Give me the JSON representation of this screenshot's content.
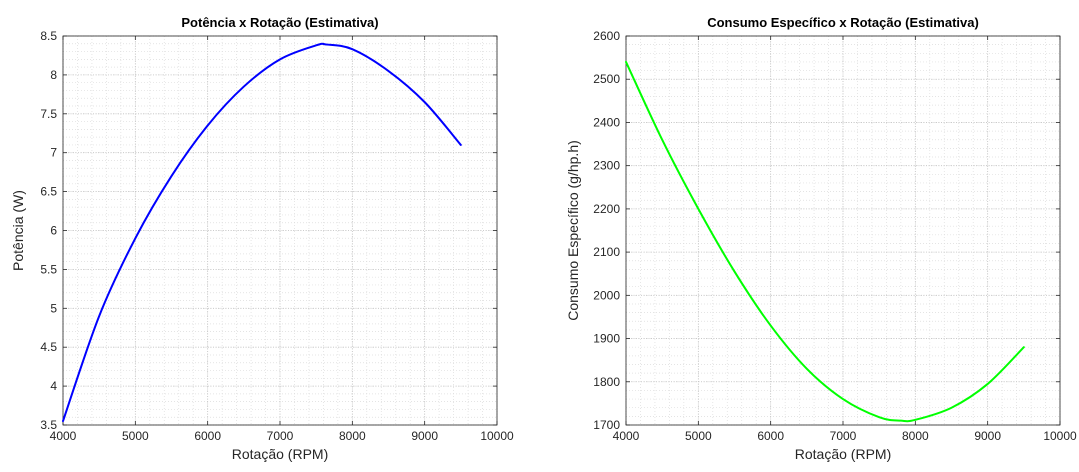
{
  "chart_data": [
    {
      "type": "line",
      "title": "Potência x Rotação (Estimativa)",
      "xlabel": "Rotação (RPM)",
      "ylabel": "Potência (W)",
      "xlim": [
        4000,
        10000
      ],
      "ylim": [
        3.5,
        8.5
      ],
      "xticks": [
        "4000",
        "5000",
        "6000",
        "7000",
        "8000",
        "9000",
        "10000"
      ],
      "yticks": [
        "3.5",
        "4",
        "4.5",
        "5",
        "5.5",
        "6",
        "6.5",
        "7",
        "7.5",
        "8",
        "8.5"
      ],
      "grid": true,
      "minor_grid": true,
      "series": [
        {
          "color": "#0000ff",
          "x": [
            4000,
            4500,
            5000,
            5500,
            6000,
            6500,
            7000,
            7500,
            7650,
            8000,
            8500,
            9000,
            9500
          ],
          "y": [
            3.55,
            4.9,
            5.9,
            6.7,
            7.35,
            7.85,
            8.2,
            8.38,
            8.39,
            8.33,
            8.05,
            7.65,
            7.1
          ]
        }
      ]
    },
    {
      "type": "line",
      "title": "Consumo Específico x Rotação (Estimativa)",
      "xlabel": "Rotação (RPM)",
      "ylabel": "Consumo Específico (g/hp.h)",
      "xlim": [
        4000,
        10000
      ],
      "ylim": [
        1700,
        2600
      ],
      "xticks": [
        "4000",
        "5000",
        "6000",
        "7000",
        "8000",
        "9000",
        "10000"
      ],
      "yticks": [
        "1700",
        "1800",
        "1900",
        "2000",
        "2100",
        "2200",
        "2300",
        "2400",
        "2500",
        "2600"
      ],
      "grid": true,
      "minor_grid": true,
      "series": [
        {
          "color": "#00ff00",
          "x": [
            4000,
            4500,
            5000,
            5500,
            6000,
            6500,
            7000,
            7500,
            7800,
            8000,
            8500,
            9000,
            9500
          ],
          "y": [
            2540,
            2360,
            2200,
            2055,
            1930,
            1830,
            1760,
            1718,
            1710,
            1712,
            1740,
            1795,
            1880
          ]
        }
      ]
    }
  ]
}
